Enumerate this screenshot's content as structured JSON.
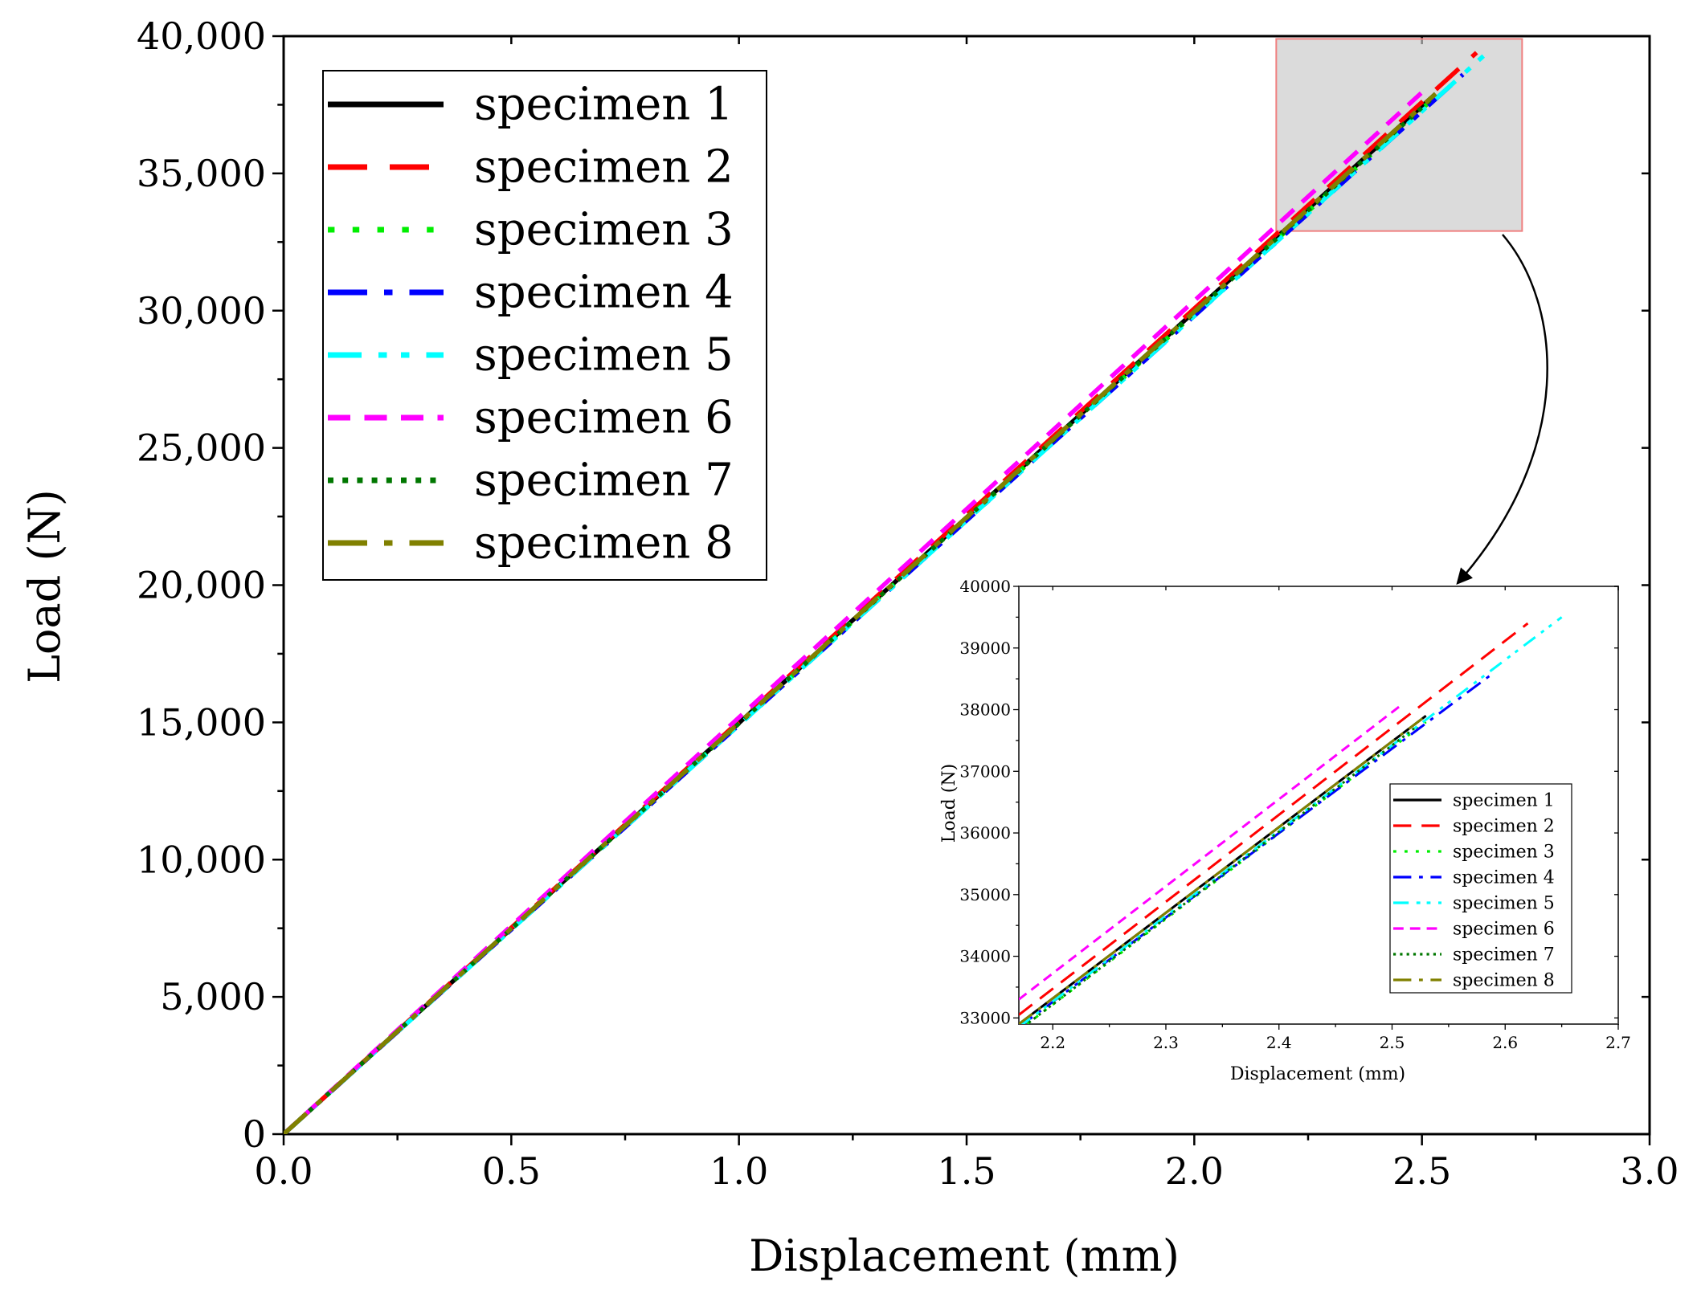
{
  "chart_data": [
    {
      "type": "line",
      "title": "",
      "xlabel": "Displacement (mm)",
      "ylabel": "Load (N)",
      "xlim": [
        0,
        3.0
      ],
      "ylim": [
        0,
        40000
      ],
      "xticks": [
        0.0,
        0.5,
        1.0,
        1.5,
        2.0,
        2.5,
        3.0
      ],
      "xtick_labels": [
        "0.0",
        "0.5",
        "1.0",
        "1.5",
        "2.0",
        "2.5",
        "3.0"
      ],
      "yticks": [
        0,
        5000,
        10000,
        15000,
        20000,
        25000,
        30000,
        35000,
        40000
      ],
      "ytick_labels": [
        "0",
        "5,000",
        "10,000",
        "15,000",
        "20,000",
        "25,000",
        "30,000",
        "35,000",
        "40,000"
      ],
      "legend_position": "top-left",
      "series": [
        {
          "name": "specimen 1",
          "color": "#000000",
          "dash": "solid",
          "x": [
            0,
            2.53
          ],
          "y": [
            0,
            37900
          ]
        },
        {
          "name": "specimen 2",
          "color": "#ff0000",
          "dash": "dash",
          "x": [
            0,
            2.62
          ],
          "y": [
            0,
            39400
          ]
        },
        {
          "name": "specimen 3",
          "color": "#00ee00",
          "dash": "dot",
          "x": [
            0,
            2.53
          ],
          "y": [
            0,
            37800
          ]
        },
        {
          "name": "specimen 4",
          "color": "#0000ff",
          "dash": "dashdot",
          "x": [
            0,
            2.59
          ],
          "y": [
            0,
            38600
          ]
        },
        {
          "name": "specimen 5",
          "color": "#00ffff",
          "dash": "dashdotdot",
          "x": [
            0,
            2.65
          ],
          "y": [
            0,
            39500
          ]
        },
        {
          "name": "specimen 6",
          "color": "#ff00ff",
          "dash": "shortdash",
          "x": [
            0,
            2.51
          ],
          "y": [
            0,
            38100
          ]
        },
        {
          "name": "specimen 7",
          "color": "#007700",
          "dash": "shortdot",
          "x": [
            0,
            2.52
          ],
          "y": [
            0,
            37700
          ]
        },
        {
          "name": "specimen 8",
          "color": "#808000",
          "dash": "dashdot",
          "x": [
            0,
            2.53
          ],
          "y": [
            0,
            37900
          ]
        }
      ],
      "zoom_region": {
        "x": [
          2.18,
          2.72
        ],
        "y": [
          32900,
          39900
        ]
      }
    },
    {
      "type": "line",
      "title": "",
      "xlabel": "Displacement (mm)",
      "ylabel": "Load (N)",
      "xlim": [
        2.17,
        2.7
      ],
      "ylim": [
        32900,
        40000
      ],
      "xticks": [
        2.2,
        2.3,
        2.4,
        2.5,
        2.6,
        2.7
      ],
      "xtick_labels": [
        "2.2",
        "2.3",
        "2.4",
        "2.5",
        "2.6",
        "2.7"
      ],
      "yticks": [
        33000,
        34000,
        35000,
        36000,
        37000,
        38000,
        39000,
        40000
      ],
      "ytick_labels": [
        "33000",
        "34000",
        "35000",
        "36000",
        "37000",
        "38000",
        "39000",
        "40000"
      ],
      "legend_position": "bottom-right",
      "series": [
        {
          "name": "specimen 1",
          "color": "#000000",
          "dash": "solid",
          "x": [
            2.17,
            2.53
          ],
          "y": [
            32900,
            37900
          ]
        },
        {
          "name": "specimen 2",
          "color": "#ff0000",
          "dash": "dash",
          "x": [
            2.17,
            2.62
          ],
          "y": [
            33050,
            39400
          ]
        },
        {
          "name": "specimen 3",
          "color": "#00ee00",
          "dash": "dot",
          "x": [
            2.17,
            2.53
          ],
          "y": [
            32800,
            37800
          ]
        },
        {
          "name": "specimen 4",
          "color": "#0000ff",
          "dash": "dashdot",
          "x": [
            2.17,
            2.59
          ],
          "y": [
            32850,
            38600
          ]
        },
        {
          "name": "specimen 5",
          "color": "#00ffff",
          "dash": "dashdotdot",
          "x": [
            2.17,
            2.65
          ],
          "y": [
            32850,
            39500
          ]
        },
        {
          "name": "specimen 6",
          "color": "#ff00ff",
          "dash": "shortdash",
          "x": [
            2.17,
            2.51
          ],
          "y": [
            33300,
            38100
          ]
        },
        {
          "name": "specimen 7",
          "color": "#007700",
          "dash": "shortdot",
          "x": [
            2.17,
            2.52
          ],
          "y": [
            32800,
            37700
          ]
        },
        {
          "name": "specimen 8",
          "color": "#808000",
          "dash": "dashdot",
          "x": [
            2.17,
            2.53
          ],
          "y": [
            32900,
            37900
          ]
        }
      ]
    }
  ]
}
